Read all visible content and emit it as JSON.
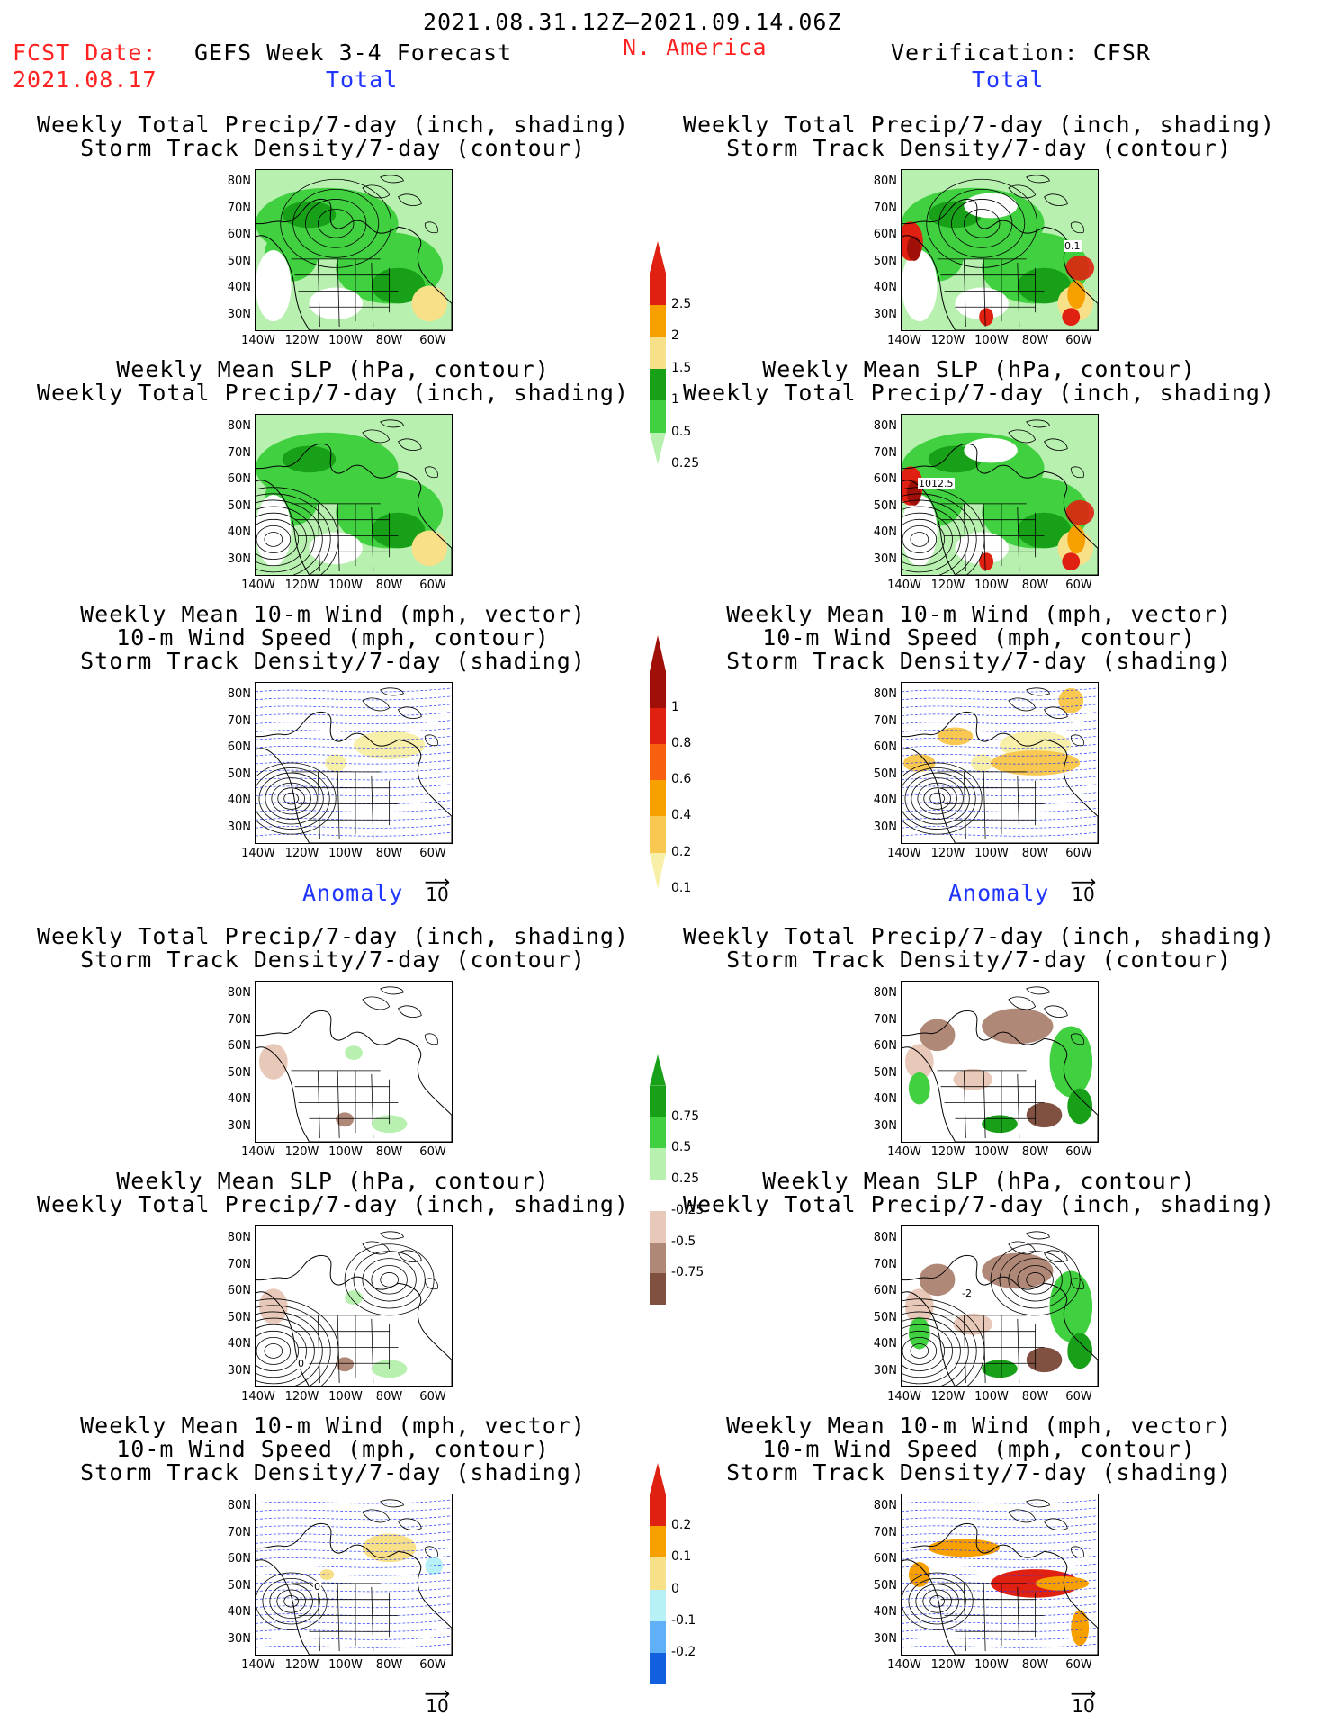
{
  "header": {
    "period": "2021.08.31.12Z–2021.09.14.06Z",
    "fcst_label": "FCST Date:",
    "fcst_date": "2021.08.17",
    "model": "GEFS Week 3-4 Forecast",
    "region": "N. America",
    "verification": "Verification: CFSR",
    "total_label": "Total",
    "anomaly_label": "Anomaly"
  },
  "titles": {
    "precip_track": [
      "Weekly Total Precip/7-day (inch, shading)",
      "Storm Track Density/7-day (contour)"
    ],
    "slp_precip": [
      "Weekly Mean SLP (hPa, contour)",
      "Weekly Total Precip/7-day (inch, shading)"
    ],
    "wind_track": [
      "Weekly Mean 10-m Wind (mph, vector)",
      "10-m Wind Speed (mph, contour)",
      "Storm Track Density/7-day (shading)"
    ]
  },
  "axes": {
    "lat": [
      "80N",
      "70N",
      "60N",
      "50N",
      "40N",
      "30N"
    ],
    "lon": [
      "140W",
      "120W",
      "100W",
      "80W",
      "60W"
    ]
  },
  "vector_ref": "10",
  "map_annotations": {
    "obs_track": "0.1",
    "obs_slp": "1012.5",
    "fc_anom_slp": "0",
    "obs_anom_slp": "-2",
    "fc_anom_track": "0"
  },
  "colorbars": {
    "precip": {
      "labels": [
        "2.5",
        "2",
        "1.5",
        "1",
        "0.5",
        "0.25"
      ],
      "colors": [
        "#e02010",
        "#f8a000",
        "#f8e088",
        "#18a018",
        "#40d040",
        "#b8f0b0"
      ]
    },
    "track": {
      "labels": [
        "1",
        "0.8",
        "0.6",
        "0.4",
        "0.2",
        "0.1"
      ],
      "colors": [
        "#a01008",
        "#e02010",
        "#f86010",
        "#f8a000",
        "#f8c850",
        "#f8f0a8"
      ]
    },
    "precip_anom": {
      "labels": [
        "0.75",
        "0.5",
        "0.25",
        "-0.25",
        "-0.5",
        "-0.75"
      ],
      "colors": [
        "#18a018",
        "#40d040",
        "#b8f0b0",
        "#ffffff",
        "#e8c8b8",
        "#b08878",
        "#805040"
      ]
    },
    "track_anom": {
      "labels": [
        "0.2",
        "0.1",
        "0",
        "-0.1",
        "-0.2"
      ],
      "colors": [
        "#e02010",
        "#f8a000",
        "#f8e088",
        "#b8f0f8",
        "#60b0f8",
        "#1060e0"
      ]
    }
  }
}
